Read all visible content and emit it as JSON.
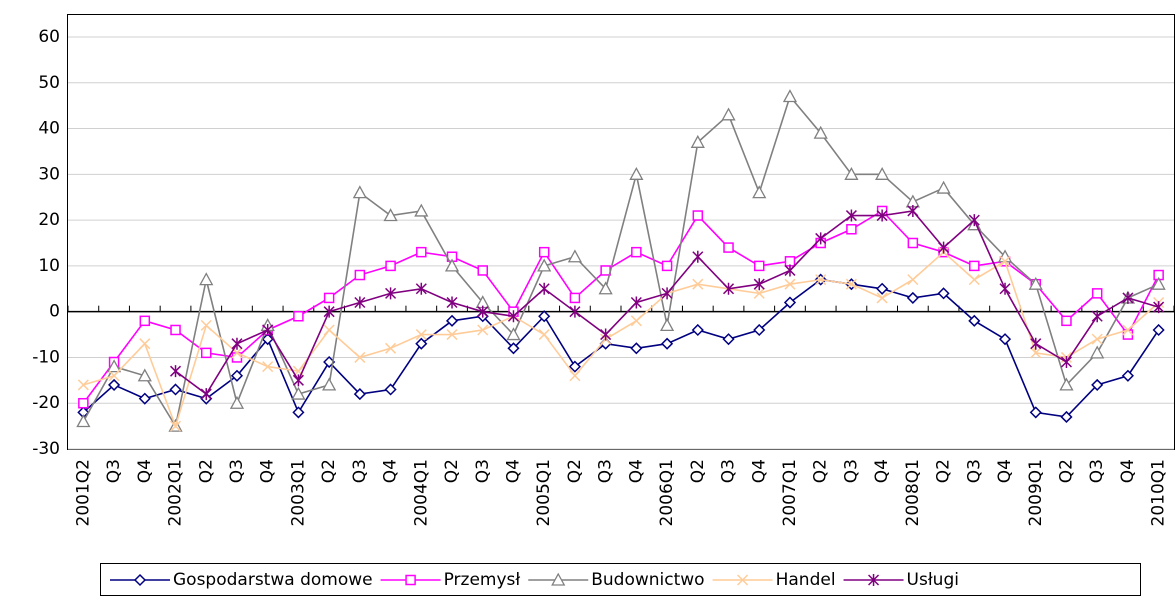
{
  "chart_data": {
    "type": "line",
    "categories": [
      "2001Q2",
      "Q3",
      "Q4",
      "2002Q1",
      "Q2",
      "Q3",
      "Q4",
      "2003Q1",
      "Q2",
      "Q3",
      "Q4",
      "2004Q1",
      "Q2",
      "Q3",
      "Q4",
      "2005Q1",
      "Q2",
      "Q3",
      "Q4",
      "2006Q1",
      "Q2",
      "Q3",
      "Q4",
      "2007Q1",
      "Q2",
      "Q3",
      "Q4",
      "2008Q1",
      "Q2",
      "Q3",
      "Q4",
      "2009Q1",
      "Q2",
      "Q3",
      "Q4",
      "2010Q1"
    ],
    "series": [
      {
        "name": "Gospodarstwa domowe",
        "color": "#000080",
        "marker": "diamond",
        "values": [
          -22,
          -16,
          -19,
          -17,
          -19,
          -14,
          -6,
          -22,
          -11,
          -18,
          -17,
          -7,
          -2,
          -1,
          -8,
          -1,
          -12,
          -7,
          -8,
          -7,
          -4,
          -6,
          -4,
          2,
          7,
          6,
          5,
          3,
          4,
          -2,
          -6,
          -22,
          -23,
          -16,
          -14,
          -4
        ]
      },
      {
        "name": "Przemysł",
        "color": "#ff00ff",
        "marker": "square",
        "values": [
          -20,
          -11,
          -2,
          -4,
          -9,
          -10,
          -4,
          -1,
          3,
          8,
          10,
          13,
          12,
          9,
          0,
          13,
          3,
          9,
          13,
          10,
          21,
          14,
          10,
          11,
          15,
          18,
          22,
          15,
          13,
          10,
          11,
          6,
          -2,
          4,
          -5,
          8
        ]
      },
      {
        "name": "Budownictwo",
        "color": "#808080",
        "marker": "triangle",
        "values": [
          -24,
          -12,
          -14,
          -25,
          7,
          -20,
          -3,
          -18,
          -16,
          26,
          21,
          22,
          10,
          2,
          -5,
          10,
          12,
          5,
          30,
          -3,
          37,
          43,
          26,
          47,
          39,
          30,
          30,
          24,
          27,
          19,
          12,
          6,
          -16,
          -9,
          3,
          6
        ]
      },
      {
        "name": "Handel",
        "color": "#ffcc99",
        "marker": "x",
        "values": [
          -16,
          -14,
          -7,
          -25,
          -3,
          -9,
          -12,
          -13,
          -4,
          -10,
          -8,
          -5,
          -5,
          -4,
          -1,
          -5,
          -14,
          -6,
          -2,
          4,
          6,
          5,
          4,
          6,
          7,
          6,
          3,
          7,
          13,
          7,
          11,
          -9,
          -10,
          -6,
          -4,
          2
        ]
      },
      {
        "name": "Usługi",
        "color": "#800080",
        "marker": "star",
        "values": [
          null,
          null,
          null,
          -13,
          -18,
          -7,
          -4,
          -15,
          0,
          2,
          4,
          5,
          2,
          0,
          -1,
          5,
          0,
          -5,
          2,
          4,
          12,
          5,
          6,
          9,
          16,
          21,
          21,
          22,
          14,
          20,
          5,
          -7,
          -11,
          -1,
          3,
          1
        ]
      }
    ],
    "ylim": [
      -30,
      60
    ],
    "yticks": [
      -30,
      -20,
      -10,
      0,
      10,
      20,
      30,
      40,
      50,
      60
    ],
    "grid": true
  }
}
